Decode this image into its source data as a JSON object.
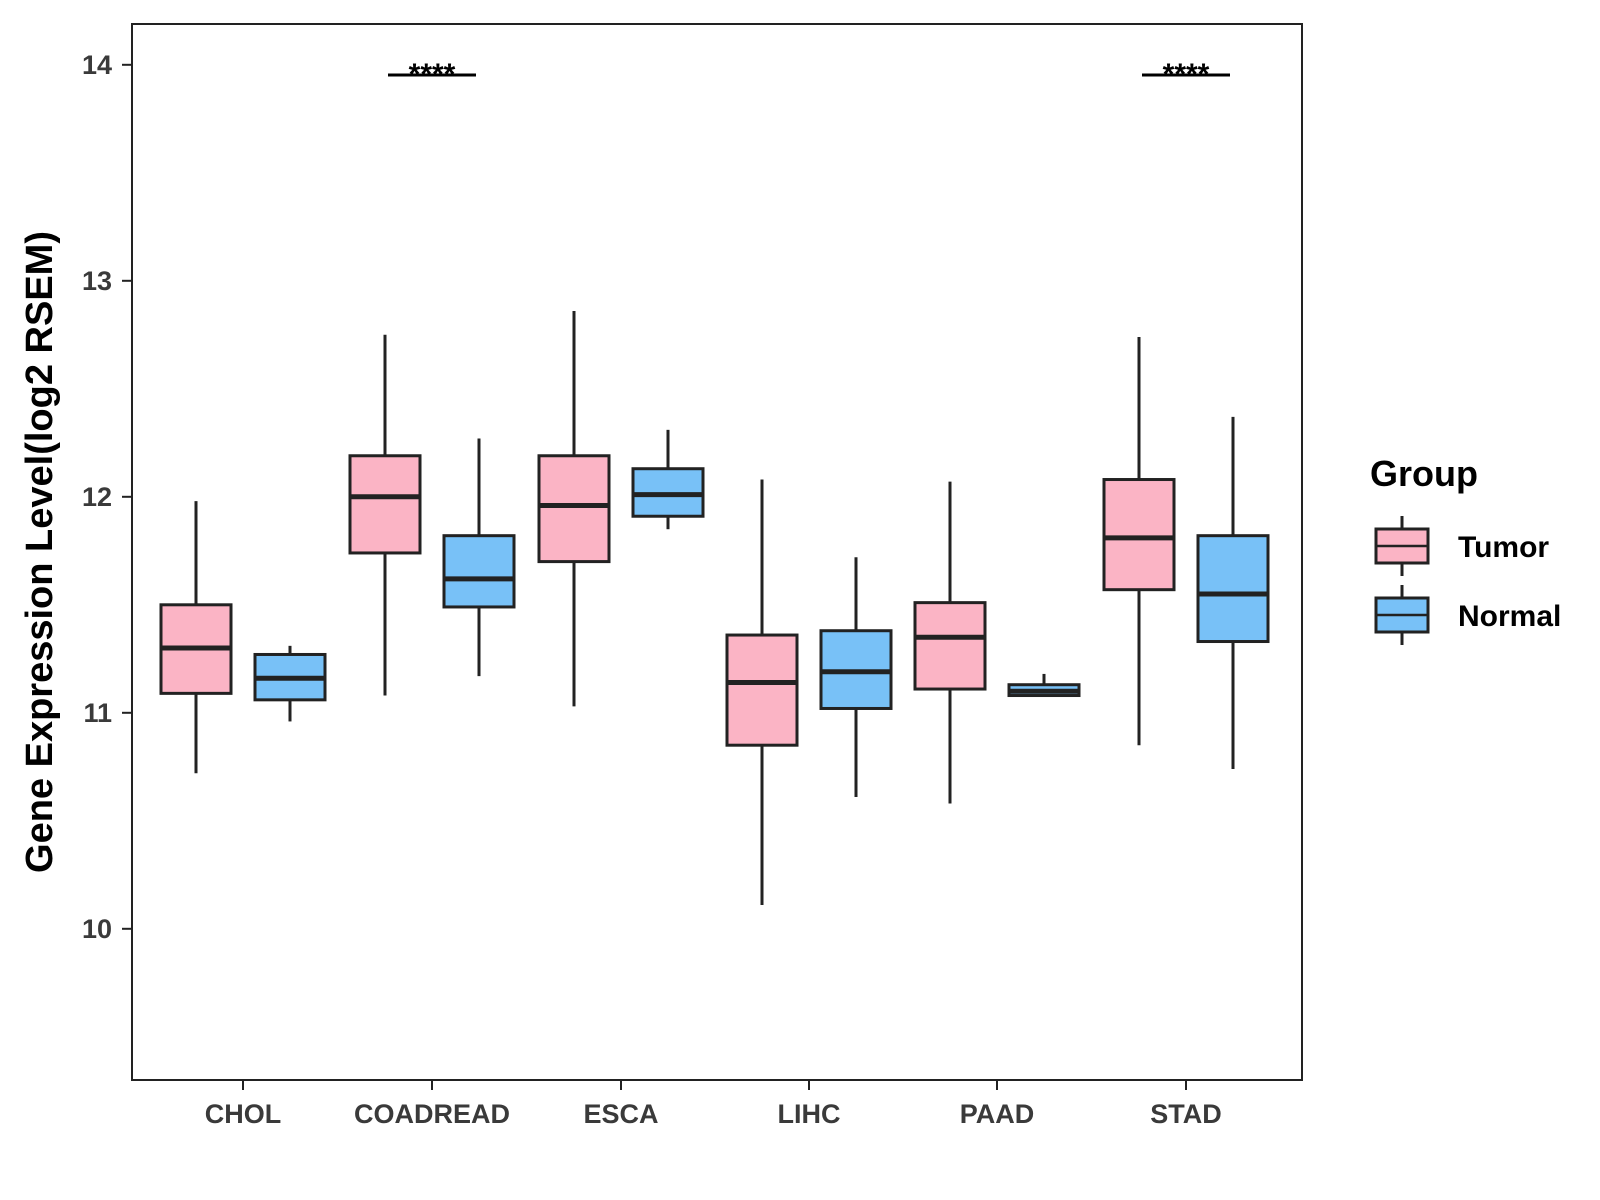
{
  "chart_data": {
    "type": "boxplot",
    "title": "",
    "xlabel": "",
    "ylabel": "Gene Expression Level(log2 RSEM)",
    "ylim": [
      9.3,
      14.07
    ],
    "yticks": [
      10,
      11,
      12,
      13,
      14
    ],
    "categories": [
      "CHOL",
      "COADREAD",
      "ESCA",
      "LIHC",
      "PAAD",
      "STAD"
    ],
    "legend": {
      "title": "Group",
      "position": "right",
      "entries": [
        {
          "name": "Tumor",
          "color": "#FBB4C5"
        },
        {
          "name": "Normal",
          "color": "#78C1F7"
        }
      ]
    },
    "series": [
      {
        "name": "Tumor",
        "color": "#FBB4C5",
        "boxes": [
          {
            "min": 10.72,
            "q1": 11.09,
            "median": 11.3,
            "q3": 11.5,
            "max": 11.98
          },
          {
            "min": 11.08,
            "q1": 11.74,
            "median": 12.0,
            "q3": 12.19,
            "max": 12.75
          },
          {
            "min": 11.03,
            "q1": 11.7,
            "median": 11.96,
            "q3": 12.19,
            "max": 12.86
          },
          {
            "min": 10.11,
            "q1": 10.85,
            "median": 11.14,
            "q3": 11.36,
            "max": 12.08
          },
          {
            "min": 10.58,
            "q1": 11.11,
            "median": 11.35,
            "q3": 11.51,
            "max": 12.07
          },
          {
            "min": 10.85,
            "q1": 11.57,
            "median": 11.81,
            "q3": 12.08,
            "max": 12.74
          }
        ]
      },
      {
        "name": "Normal",
        "color": "#78C1F7",
        "boxes": [
          {
            "min": 10.96,
            "q1": 11.06,
            "median": 11.16,
            "q3": 11.27,
            "max": 11.31
          },
          {
            "min": 11.17,
            "q1": 11.49,
            "median": 11.62,
            "q3": 11.82,
            "max": 12.27
          },
          {
            "min": 11.85,
            "q1": 11.91,
            "median": 12.01,
            "q3": 12.13,
            "max": 12.31
          },
          {
            "min": 10.61,
            "q1": 11.02,
            "median": 11.19,
            "q3": 11.38,
            "max": 11.72
          },
          {
            "min": 11.08,
            "q1": 11.08,
            "median": 11.1,
            "q3": 11.13,
            "max": 11.18
          },
          {
            "min": 10.74,
            "q1": 11.33,
            "median": 11.55,
            "q3": 11.82,
            "max": 12.37
          }
        ]
      }
    ],
    "annotations": [
      {
        "category": "COADREAD",
        "text": "****"
      },
      {
        "category": "STAD",
        "text": "****"
      }
    ]
  }
}
